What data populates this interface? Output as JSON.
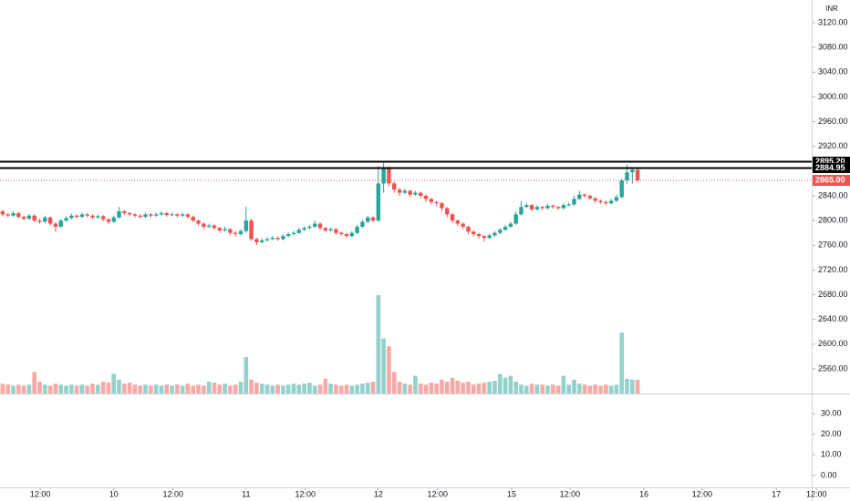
{
  "chart_data": {
    "type": "candlestick",
    "currency": "INR",
    "ohlc": [
      [
        2815,
        2818,
        2807,
        2810
      ],
      [
        2810,
        2812,
        2805,
        2808
      ],
      [
        2808,
        2815,
        2806,
        2812
      ],
      [
        2812,
        2814,
        2803,
        2806
      ],
      [
        2806,
        2808,
        2800,
        2803
      ],
      [
        2803,
        2811,
        2801,
        2808
      ],
      [
        2808,
        2810,
        2797,
        2800
      ],
      [
        2800,
        2803,
        2795,
        2798
      ],
      [
        2798,
        2808,
        2796,
        2805
      ],
      [
        2805,
        2807,
        2792,
        2795
      ],
      [
        2795,
        2797,
        2782,
        2790
      ],
      [
        2790,
        2803,
        2788,
        2800
      ],
      [
        2800,
        2807,
        2798,
        2804
      ],
      [
        2804,
        2811,
        2802,
        2808
      ],
      [
        2808,
        2810,
        2803,
        2806
      ],
      [
        2806,
        2813,
        2804,
        2810
      ],
      [
        2810,
        2812,
        2805,
        2808
      ],
      [
        2808,
        2810,
        2802,
        2805
      ],
      [
        2805,
        2810,
        2803,
        2807
      ],
      [
        2807,
        2809,
        2799,
        2802
      ],
      [
        2802,
        2804,
        2794,
        2798
      ],
      [
        2798,
        2808,
        2796,
        2805
      ],
      [
        2805,
        2822,
        2803,
        2815
      ],
      [
        2815,
        2817,
        2809,
        2812
      ],
      [
        2812,
        2814,
        2807,
        2810
      ],
      [
        2810,
        2812,
        2805,
        2808
      ],
      [
        2808,
        2810,
        2803,
        2806
      ],
      [
        2806,
        2813,
        2804,
        2810
      ],
      [
        2810,
        2812,
        2805,
        2808
      ],
      [
        2808,
        2813,
        2806,
        2810
      ],
      [
        2810,
        2815,
        2808,
        2812
      ],
      [
        2812,
        2814,
        2806,
        2809
      ],
      [
        2809,
        2813,
        2807,
        2810
      ],
      [
        2810,
        2812,
        2805,
        2808
      ],
      [
        2808,
        2813,
        2806,
        2810
      ],
      [
        2810,
        2812,
        2803,
        2806
      ],
      [
        2806,
        2808,
        2797,
        2800
      ],
      [
        2800,
        2802,
        2792,
        2795
      ],
      [
        2795,
        2797,
        2786,
        2790
      ],
      [
        2790,
        2795,
        2788,
        2792
      ],
      [
        2792,
        2794,
        2785,
        2788
      ],
      [
        2788,
        2790,
        2780,
        2784
      ],
      [
        2784,
        2790,
        2782,
        2786
      ],
      [
        2786,
        2788,
        2776,
        2780
      ],
      [
        2780,
        2783,
        2774,
        2778
      ],
      [
        2778,
        2786,
        2776,
        2783
      ],
      [
        2783,
        2822,
        2780,
        2800
      ],
      [
        2800,
        2803,
        2767,
        2770
      ],
      [
        2770,
        2772,
        2760,
        2765
      ],
      [
        2765,
        2771,
        2763,
        2768
      ],
      [
        2768,
        2773,
        2766,
        2770
      ],
      [
        2770,
        2775,
        2768,
        2772
      ],
      [
        2772,
        2774,
        2767,
        2770
      ],
      [
        2770,
        2778,
        2768,
        2775
      ],
      [
        2775,
        2781,
        2773,
        2778
      ],
      [
        2778,
        2783,
        2776,
        2780
      ],
      [
        2780,
        2788,
        2778,
        2785
      ],
      [
        2785,
        2791,
        2783,
        2788
      ],
      [
        2788,
        2793,
        2786,
        2790
      ],
      [
        2790,
        2800,
        2788,
        2795
      ],
      [
        2795,
        2797,
        2785,
        2788
      ],
      [
        2788,
        2790,
        2781,
        2784
      ],
      [
        2784,
        2789,
        2782,
        2786
      ],
      [
        2786,
        2788,
        2777,
        2780
      ],
      [
        2780,
        2782,
        2775,
        2778
      ],
      [
        2778,
        2780,
        2772,
        2775
      ],
      [
        2775,
        2783,
        2773,
        2780
      ],
      [
        2780,
        2793,
        2778,
        2790
      ],
      [
        2790,
        2801,
        2788,
        2798
      ],
      [
        2798,
        2808,
        2796,
        2805
      ],
      [
        2805,
        2807,
        2797,
        2800
      ],
      [
        2800,
        2888,
        2798,
        2860
      ],
      [
        2860,
        2895,
        2845,
        2885
      ],
      [
        2885,
        2888,
        2855,
        2860
      ],
      [
        2860,
        2863,
        2845,
        2850
      ],
      [
        2850,
        2853,
        2840,
        2845
      ],
      [
        2845,
        2852,
        2843,
        2848
      ],
      [
        2848,
        2850,
        2838,
        2842
      ],
      [
        2842,
        2848,
        2840,
        2845
      ],
      [
        2845,
        2847,
        2836,
        2840
      ],
      [
        2840,
        2842,
        2830,
        2835
      ],
      [
        2835,
        2837,
        2826,
        2830
      ],
      [
        2830,
        2832,
        2824,
        2828
      ],
      [
        2828,
        2830,
        2815,
        2820
      ],
      [
        2820,
        2822,
        2805,
        2810
      ],
      [
        2810,
        2812,
        2796,
        2800
      ],
      [
        2800,
        2802,
        2791,
        2795
      ],
      [
        2795,
        2797,
        2786,
        2790
      ],
      [
        2790,
        2792,
        2778,
        2782
      ],
      [
        2782,
        2784,
        2774,
        2778
      ],
      [
        2778,
        2780,
        2771,
        2775
      ],
      [
        2775,
        2777,
        2766,
        2772
      ],
      [
        2772,
        2779,
        2770,
        2776
      ],
      [
        2776,
        2783,
        2774,
        2780
      ],
      [
        2780,
        2788,
        2778,
        2785
      ],
      [
        2785,
        2793,
        2783,
        2790
      ],
      [
        2790,
        2798,
        2788,
        2795
      ],
      [
        2795,
        2815,
        2793,
        2810
      ],
      [
        2810,
        2832,
        2808,
        2822
      ],
      [
        2822,
        2828,
        2820,
        2825
      ],
      [
        2825,
        2827,
        2815,
        2818
      ],
      [
        2818,
        2825,
        2816,
        2822
      ],
      [
        2822,
        2824,
        2817,
        2820
      ],
      [
        2820,
        2827,
        2818,
        2824
      ],
      [
        2824,
        2826,
        2819,
        2822
      ],
      [
        2822,
        2824,
        2817,
        2820
      ],
      [
        2820,
        2828,
        2818,
        2825
      ],
      [
        2825,
        2829,
        2823,
        2826
      ],
      [
        2826,
        2840,
        2824,
        2835
      ],
      [
        2835,
        2848,
        2833,
        2842
      ],
      [
        2842,
        2844,
        2837,
        2840
      ],
      [
        2840,
        2842,
        2833,
        2836
      ],
      [
        2836,
        2838,
        2829,
        2832
      ],
      [
        2832,
        2834,
        2827,
        2830
      ],
      [
        2830,
        2832,
        2825,
        2828
      ],
      [
        2828,
        2835,
        2826,
        2832
      ],
      [
        2832,
        2842,
        2830,
        2838
      ],
      [
        2838,
        2868,
        2836,
        2865
      ],
      [
        2865,
        2890,
        2860,
        2878
      ],
      [
        2878,
        2885,
        2860,
        2882
      ],
      [
        2882,
        2886,
        2862,
        2865
      ]
    ],
    "volume": [
      10,
      9,
      8,
      9,
      8,
      9,
      22,
      12,
      9,
      8,
      10,
      9,
      8,
      9,
      8,
      9,
      8,
      10,
      9,
      12,
      11,
      20,
      14,
      10,
      11,
      9,
      8,
      9,
      8,
      9,
      8,
      9,
      8,
      9,
      8,
      10,
      8,
      9,
      8,
      12,
      11,
      9,
      10,
      8,
      9,
      12,
      37,
      14,
      11,
      10,
      9,
      8,
      9,
      8,
      9,
      10,
      9,
      10,
      11,
      8,
      9,
      15,
      10,
      9,
      8,
      9,
      8,
      9,
      10,
      11,
      12,
      100,
      56,
      48,
      22,
      12,
      10,
      9,
      18,
      10,
      9,
      11,
      10,
      14,
      12,
      16,
      13,
      11,
      12,
      9,
      10,
      11,
      12,
      13,
      20,
      16,
      18,
      12,
      9,
      8,
      10,
      9,
      9,
      8,
      9,
      8,
      18,
      9,
      14,
      10,
      9,
      8,
      9,
      8,
      9,
      8,
      9,
      62,
      15,
      14,
      14
    ],
    "up_color": "#26a69a",
    "down_color": "#ef5350",
    "up_volume_color": "#93d2cb",
    "down_volume_color": "#f7a9a7",
    "xlim": [
      -0.5,
      152.9
    ],
    "xticks": [
      {
        "value": 7.1,
        "label": "12:00"
      },
      {
        "value": 21,
        "label": "10"
      },
      {
        "value": 32.2,
        "label": "12:00"
      },
      {
        "value": 46,
        "label": "11"
      },
      {
        "value": 57.2,
        "label": "12:00"
      },
      {
        "value": 71,
        "label": "12"
      },
      {
        "value": 82.2,
        "label": "12:00"
      },
      {
        "value": 96.2,
        "label": "15"
      },
      {
        "value": 107.2,
        "label": "12:00"
      },
      {
        "value": 121.2,
        "label": "16"
      },
      {
        "value": 132.2,
        "label": "12:00"
      },
      {
        "value": 146.2,
        "label": "17"
      },
      {
        "value": 153.8,
        "label": "12:00"
      }
    ],
    "ylim": [
      2520.2,
      3156.8
    ],
    "yticks": [
      {
        "value": 3120,
        "label": "3120.00"
      },
      {
        "value": 3080,
        "label": "3080.00"
      },
      {
        "value": 3040,
        "label": "3040.00"
      },
      {
        "value": 3000,
        "label": "3000.00"
      },
      {
        "value": 2960,
        "label": "2960.00"
      },
      {
        "value": 2920,
        "label": "2920.00"
      },
      {
        "value": 2840,
        "label": "2840.00"
      },
      {
        "value": 2800,
        "label": "2800.00"
      },
      {
        "value": 2760,
        "label": "2760.00"
      },
      {
        "value": 2720,
        "label": "2720.00"
      },
      {
        "value": 2680,
        "label": "2680.00"
      },
      {
        "value": 2640,
        "label": "2640.00"
      },
      {
        "value": 2600,
        "label": "2600.00"
      },
      {
        "value": 2560,
        "label": "2560.00"
      }
    ],
    "volume_ylim": [
      0,
      400
    ],
    "lines": [
      {
        "value": 2895.2,
        "label": "2895.20",
        "color": "#000000"
      },
      {
        "value": 2884.95,
        "label": "2884.95",
        "color": "#000000"
      }
    ],
    "last_price": {
      "value": 2865,
      "label": "2865.00",
      "color": "#ef5350"
    },
    "pane2": {
      "ylim": [
        -5.8,
        39.8
      ],
      "yticks": [
        {
          "value": 30,
          "label": "30.00"
        },
        {
          "value": 20,
          "label": "20.00"
        },
        {
          "value": 10,
          "label": "10.00"
        },
        {
          "value": 0,
          "label": "0.00"
        }
      ]
    }
  }
}
